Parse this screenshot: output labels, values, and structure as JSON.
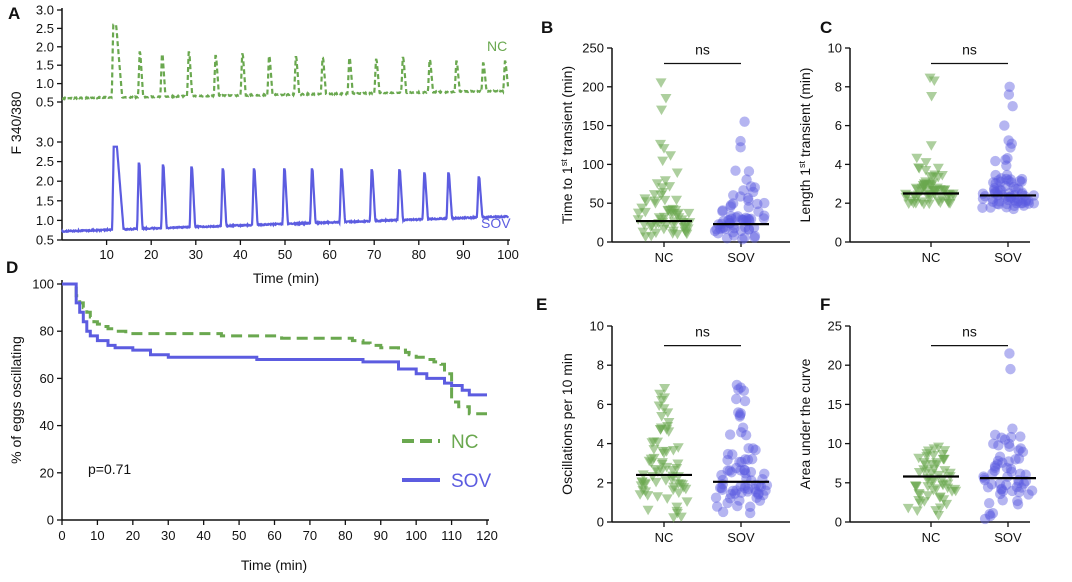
{
  "colors": {
    "nc": "#6aa84f",
    "sov": "#5c5ce0",
    "axis": "#111111",
    "mean": "#000000"
  },
  "chart_data": [
    {
      "id": "A",
      "type": "line",
      "panel_label": "A",
      "xlabel": "Time (min)",
      "ylabel": "F 340/380",
      "xlim": [
        0,
        100
      ],
      "x_ticks": [
        10,
        20,
        30,
        40,
        50,
        60,
        70,
        80,
        90,
        100
      ],
      "series": [
        {
          "name": "NC",
          "key": "nc",
          "style": "dashed",
          "ylim": [
            0.5,
            3.0
          ],
          "y_ticks": [
            "0.5",
            "1.0",
            "1.5",
            "2.0",
            "2.5",
            "3.0"
          ],
          "baseline_start": 0.6,
          "baseline_end": 0.8,
          "peaks": [
            {
              "t": 11.5,
              "h": 2.6,
              "w": 1.6
            },
            {
              "t": 17.4,
              "h": 1.85,
              "w": 0.4
            },
            {
              "t": 22.4,
              "h": 1.8,
              "w": 0.4
            },
            {
              "t": 28.4,
              "h": 1.85,
              "w": 0.4
            },
            {
              "t": 34.4,
              "h": 1.75,
              "w": 0.4
            },
            {
              "t": 40.4,
              "h": 1.8,
              "w": 0.4
            },
            {
              "t": 46.4,
              "h": 1.75,
              "w": 0.4
            },
            {
              "t": 52.4,
              "h": 1.72,
              "w": 0.4
            },
            {
              "t": 58.4,
              "h": 1.7,
              "w": 0.4
            },
            {
              "t": 64.4,
              "h": 1.7,
              "w": 0.4
            },
            {
              "t": 70.4,
              "h": 1.65,
              "w": 0.4
            },
            {
              "t": 76.4,
              "h": 1.7,
              "w": 0.4
            },
            {
              "t": 82.4,
              "h": 1.65,
              "w": 0.4
            },
            {
              "t": 88.4,
              "h": 1.6,
              "w": 0.4
            },
            {
              "t": 94.4,
              "h": 1.55,
              "w": 0.4
            },
            {
              "t": 99.3,
              "h": 1.6,
              "w": 0.4
            }
          ]
        },
        {
          "name": "SOV",
          "key": "sov",
          "style": "solid",
          "ylim": [
            0.5,
            3.0
          ],
          "y_ticks": [
            "0.5",
            "1.0",
            "1.5",
            "2.0",
            "2.5",
            "3.0"
          ],
          "baseline_start": 0.72,
          "baseline_end": 1.1,
          "peaks": [
            {
              "t": 11.6,
              "h": 2.88,
              "w": 1.8
            },
            {
              "t": 17.2,
              "h": 2.45,
              "w": 0.45
            },
            {
              "t": 22.6,
              "h": 2.4,
              "w": 0.45
            },
            {
              "t": 29.0,
              "h": 2.35,
              "w": 0.45
            },
            {
              "t": 36.0,
              "h": 2.3,
              "w": 0.45
            },
            {
              "t": 43.0,
              "h": 2.3,
              "w": 0.45
            },
            {
              "t": 49.8,
              "h": 2.3,
              "w": 0.45
            },
            {
              "t": 56.0,
              "h": 2.3,
              "w": 0.45
            },
            {
              "t": 62.6,
              "h": 2.3,
              "w": 0.45
            },
            {
              "t": 69.4,
              "h": 2.28,
              "w": 0.45
            },
            {
              "t": 75.6,
              "h": 2.28,
              "w": 0.45
            },
            {
              "t": 81.2,
              "h": 2.2,
              "w": 0.45
            },
            {
              "t": 86.6,
              "h": 2.2,
              "w": 0.45
            },
            {
              "t": 93.4,
              "h": 2.1,
              "w": 0.45
            }
          ]
        }
      ]
    },
    {
      "id": "B",
      "type": "scatter",
      "panel_label": "B",
      "ylabel_parts": [
        "Time to 1",
        "st",
        " transient (min)"
      ],
      "categories": [
        "NC",
        "SOV"
      ],
      "ylim": [
        0,
        250
      ],
      "y_ticks": [
        0,
        50,
        100,
        150,
        200,
        250
      ],
      "means": [
        27,
        23
      ],
      "significance": "ns",
      "sig_y": 230,
      "groups": [
        {
          "name": "NC",
          "dist": [
            [
              5,
              10,
              3
            ],
            [
              10,
              20,
              12
            ],
            [
              20,
              30,
              14
            ],
            [
              30,
              40,
              10
            ],
            [
              40,
              50,
              7
            ],
            [
              50,
              60,
              5
            ],
            [
              60,
              70,
              4
            ],
            [
              70,
              80,
              3
            ],
            [
              80,
              90,
              1
            ],
            [
              100,
              140,
              4
            ]
          ],
          "extra": [
            170,
            185,
            205
          ]
        },
        {
          "name": "SOV",
          "dist": [
            [
              3,
              10,
              6
            ],
            [
              10,
              20,
              14
            ],
            [
              20,
              30,
              16
            ],
            [
              30,
              40,
              9
            ],
            [
              40,
              50,
              6
            ],
            [
              50,
              60,
              4
            ],
            [
              60,
              70,
              3
            ],
            [
              70,
              80,
              2
            ],
            [
              80,
              90,
              1
            ],
            [
              90,
              100,
              2
            ]
          ],
          "extra": [
            122,
            130,
            155
          ]
        }
      ]
    },
    {
      "id": "C",
      "type": "scatter",
      "panel_label": "C",
      "ylabel_parts": [
        "Length 1",
        "st",
        " transient (min)"
      ],
      "categories": [
        "NC",
        "SOV"
      ],
      "ylim": [
        0,
        10
      ],
      "y_ticks": [
        0,
        2,
        4,
        6,
        8,
        10
      ],
      "means": [
        2.5,
        2.4
      ],
      "significance": "ns",
      "sig_y": 9.2,
      "groups": [
        {
          "name": "NC",
          "dist": [
            [
              1.9,
              2.2,
              12
            ],
            [
              2.2,
              2.5,
              16
            ],
            [
              2.5,
              2.8,
              14
            ],
            [
              2.8,
              3.1,
              10
            ],
            [
              3.1,
              3.5,
              6
            ],
            [
              3.5,
              4.0,
              4
            ],
            [
              4.0,
              5.0,
              3
            ]
          ],
          "extra": [
            7.5,
            8.3,
            8.45
          ]
        },
        {
          "name": "SOV",
          "dist": [
            [
              1.7,
              2.0,
              12
            ],
            [
              2.0,
              2.4,
              20
            ],
            [
              2.4,
              2.8,
              16
            ],
            [
              2.8,
              3.2,
              10
            ],
            [
              3.2,
              3.7,
              6
            ],
            [
              3.7,
              4.5,
              4
            ],
            [
              4.5,
              5.5,
              3
            ]
          ],
          "extra": [
            6.0,
            7.0,
            7.6,
            8.0
          ]
        }
      ]
    },
    {
      "id": "D",
      "type": "line",
      "panel_label": "D",
      "xlabel": "Time (min)",
      "ylabel": "% of eggs oscillating",
      "xlim": [
        0,
        120
      ],
      "ylim": [
        0,
        100
      ],
      "x_ticks": [
        0,
        10,
        20,
        30,
        40,
        50,
        60,
        70,
        80,
        90,
        100,
        110,
        120
      ],
      "y_ticks": [
        0,
        20,
        40,
        60,
        80,
        100
      ],
      "annotation": "p=0.71",
      "series": [
        {
          "name": "NC",
          "key": "nc",
          "style": "dashed",
          "x": [
            0,
            3,
            4,
            5,
            6,
            7,
            8,
            9,
            10,
            11,
            13,
            15,
            18,
            40,
            45,
            60,
            62,
            80,
            82,
            85,
            87,
            90,
            95,
            97,
            98,
            100,
            102,
            105,
            107,
            108,
            110,
            112,
            115,
            120
          ],
          "y": [
            100,
            100,
            95,
            92,
            90,
            88,
            86,
            84,
            83,
            82,
            81,
            80,
            79,
            79,
            78,
            78,
            77,
            77,
            76,
            75,
            74,
            73,
            72,
            71,
            70,
            69,
            68,
            67,
            66,
            62,
            50,
            48,
            45,
            45
          ]
        },
        {
          "name": "SOV",
          "key": "sov",
          "style": "solid",
          "x": [
            0,
            3,
            4,
            5,
            6,
            7,
            8,
            10,
            13,
            15,
            20,
            25,
            30,
            50,
            55,
            80,
            85,
            95,
            100,
            103,
            108,
            110,
            113,
            115,
            120
          ],
          "y": [
            100,
            100,
            92,
            88,
            84,
            80,
            78,
            76,
            74,
            73,
            72,
            70,
            69,
            69,
            68,
            68,
            67,
            64,
            62,
            60,
            58,
            57,
            55,
            53,
            53
          ]
        }
      ]
    },
    {
      "id": "E",
      "type": "scatter",
      "panel_label": "E",
      "ylabel_parts": [
        "Oscillations per 10 min"
      ],
      "categories": [
        "NC",
        "SOV"
      ],
      "ylim": [
        0,
        10
      ],
      "y_ticks": [
        0,
        2,
        4,
        6,
        8,
        10
      ],
      "means": [
        2.4,
        2.05
      ],
      "significance": "ns",
      "sig_y": 9.0,
      "groups": [
        {
          "name": "NC",
          "dist": [
            [
              0.2,
              1.0,
              6
            ],
            [
              1.0,
              1.8,
              12
            ],
            [
              1.8,
              2.6,
              16
            ],
            [
              2.6,
              3.4,
              12
            ],
            [
              3.4,
              4.2,
              9
            ],
            [
              4.2,
              5.0,
              6
            ],
            [
              5.0,
              6.0,
              5
            ],
            [
              6.0,
              7.1,
              4
            ]
          ]
        },
        {
          "name": "SOV",
          "dist": [
            [
              0.3,
              1.0,
              6
            ],
            [
              1.0,
              1.6,
              14
            ],
            [
              1.6,
              2.2,
              18
            ],
            [
              2.2,
              2.8,
              12
            ],
            [
              2.8,
              3.6,
              8
            ],
            [
              3.6,
              4.6,
              6
            ],
            [
              4.6,
              5.8,
              5
            ],
            [
              5.8,
              8.0,
              6
            ]
          ]
        }
      ]
    },
    {
      "id": "F",
      "type": "scatter",
      "panel_label": "F",
      "ylabel_parts": [
        "Area under the curve"
      ],
      "categories": [
        "NC",
        "SOV"
      ],
      "ylim": [
        0,
        25
      ],
      "y_ticks": [
        0,
        5,
        10,
        15,
        20,
        25
      ],
      "means": [
        5.8,
        5.6
      ],
      "significance": "ns",
      "sig_y": 22.5,
      "groups": [
        {
          "name": "NC",
          "dist": [
            [
              0.3,
              2.0,
              5
            ],
            [
              2.0,
              4.0,
              12
            ],
            [
              4.0,
              6.0,
              18
            ],
            [
              6.0,
              8.0,
              14
            ],
            [
              8.0,
              9.6,
              10
            ]
          ]
        },
        {
          "name": "SOV",
          "dist": [
            [
              0.2,
              2.0,
              4
            ],
            [
              2.0,
              4.0,
              10
            ],
            [
              4.0,
              6.0,
              16
            ],
            [
              6.0,
              8.0,
              14
            ],
            [
              8.0,
              10.0,
              9
            ],
            [
              10.0,
              12.0,
              6
            ]
          ],
          "extra": [
            19.5,
            21.5
          ]
        }
      ]
    }
  ]
}
